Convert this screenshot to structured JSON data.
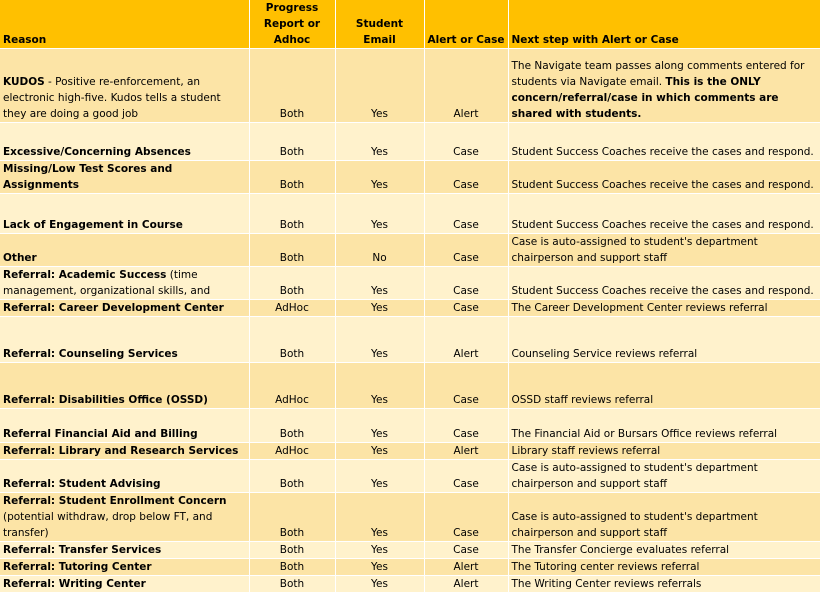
{
  "header": {
    "reason": "Reason",
    "progress": "Progress Report or Adhoc",
    "email": "Student Email",
    "alert": "Alert or Case",
    "next": "Next step with Alert or Case"
  },
  "rows": [
    {
      "reason_bold": "KUDOS",
      "reason_rest": " - Positive re-enforcement, an electronic high-five. Kudos tells a student they are doing a good job",
      "progress": "Both",
      "email": "Yes",
      "alert": "Alert",
      "next": "The Navigate team passes along comments entered for students via Navigate email. ",
      "next_bold": "This is the ONLY concern/referral/case in which comments are shared with students."
    },
    {
      "reason_bold": "Excessive/Concerning Absences",
      "reason_rest": "",
      "progress": "Both",
      "email": "Yes",
      "alert": "Case",
      "next": "Student Success Coaches receive the cases and respond.",
      "next_bold": ""
    },
    {
      "reason_bold": "Missing/Low Test Scores and Assignments",
      "reason_rest": "",
      "progress": "Both",
      "email": "Yes",
      "alert": "Case",
      "next": "Student Success Coaches receive the cases and respond.",
      "next_bold": ""
    },
    {
      "reason_bold": "Lack of Engagement in Course",
      "reason_rest": "",
      "progress": "Both",
      "email": "Yes",
      "alert": "Case",
      "next": "Student Success Coaches receive the cases and respond.",
      "next_bold": ""
    },
    {
      "reason_bold": "Other",
      "reason_rest": "",
      "progress": "Both",
      "email": "No",
      "alert": "Case",
      "next": "Case is auto-assigned to student's department chairperson and support staff",
      "next_bold": ""
    },
    {
      "reason_bold": "Referral: Academic Success",
      "reason_rest": "  (time management, organizational skills, and",
      "progress": "Both",
      "email": "Yes",
      "alert": "Case",
      "next": "Student Success Coaches receive the cases and respond.",
      "next_bold": ""
    },
    {
      "reason_bold": "Referral: Career Development Center",
      "reason_rest": "",
      "progress": "AdHoc",
      "email": "Yes",
      "alert": "Case",
      "next": "The Career Development Center reviews referral",
      "next_bold": ""
    },
    {
      "reason_bold": "Referral: Counseling Services",
      "reason_rest": "",
      "progress": "Both",
      "email": "Yes",
      "alert": "Alert",
      "next": "Counseling Service reviews referral",
      "next_bold": ""
    },
    {
      "reason_bold": "Referral: Disabilities Office (OSSD)",
      "reason_rest": "",
      "progress": "AdHoc",
      "email": "Yes",
      "alert": "Case",
      "next": "OSSD staff reviews referral",
      "next_bold": ""
    },
    {
      "reason_bold": "Referral Financial Aid and Billing",
      "reason_rest": "",
      "progress": "Both",
      "email": "Yes",
      "alert": "Case",
      "next": "The Financial Aid or Bursars Office reviews referral",
      "next_bold": ""
    },
    {
      "reason_bold": "Referral: Library and Research Services",
      "reason_rest": "",
      "progress": "AdHoc",
      "email": "Yes",
      "alert": "Alert",
      "next": "Library staff reviews referral",
      "next_bold": ""
    },
    {
      "reason_bold": "Referral: Student Advising",
      "reason_rest": "",
      "progress": "Both",
      "email": "Yes",
      "alert": "Case",
      "next": "Case is auto-assigned to student's department chairperson and support staff",
      "next_bold": ""
    },
    {
      "reason_bold": "Referral: Student Enrollment Concern",
      "reason_rest": " (potential withdraw, drop below FT, and transfer)",
      "progress": "Both",
      "email": "Yes",
      "alert": "Case",
      "next": "Case is auto-assigned to student's department chairperson and support staff",
      "next_bold": ""
    },
    {
      "reason_bold": "Referral: Transfer Services",
      "reason_rest": "",
      "progress": "Both",
      "email": "Yes",
      "alert": "Case",
      "next": "The Transfer Concierge evaluates referral",
      "next_bold": ""
    },
    {
      "reason_bold": "Referral: Tutoring Center",
      "reason_rest": "",
      "progress": "Both",
      "email": "Yes",
      "alert": "Alert",
      "next": "The Tutoring center reviews referral",
      "next_bold": ""
    },
    {
      "reason_bold": "Referral: Writing Center",
      "reason_rest": "",
      "progress": "Both",
      "email": "Yes",
      "alert": "Alert",
      "next": "The Writing Center reviews referrals",
      "next_bold": ""
    }
  ]
}
